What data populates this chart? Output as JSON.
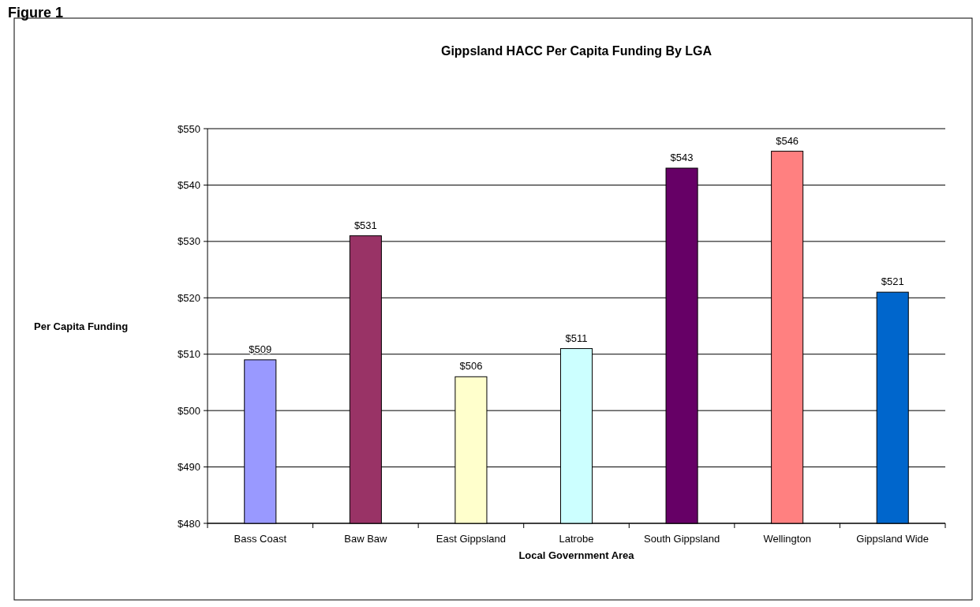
{
  "chart_data": {
    "type": "bar",
    "title": "Gippsland HACC Per Capita Funding By LGA",
    "xlabel": "Local Government Area",
    "ylabel": "Per Capita Funding",
    "annotations": [
      "Figure 1"
    ],
    "categories": [
      "Bass Coast",
      "Baw Baw",
      "East Gippsland",
      "Latrobe",
      "South Gippsland",
      "Wellington",
      "Gippsland Wide"
    ],
    "values": [
      509,
      531,
      506,
      511,
      543,
      546,
      521
    ],
    "colors": [
      "#9999ff",
      "#993366",
      "#ffffcc",
      "#ccffff",
      "#660066",
      "#ff8080",
      "#0066cc"
    ],
    "value_labels": [
      "$509",
      "$531",
      "$506",
      "$511",
      "$543",
      "$546",
      "$521"
    ],
    "ylim": [
      480,
      550
    ],
    "yticks": [
      {
        "value": 480,
        "label": "$480"
      },
      {
        "value": 490,
        "label": "$490"
      },
      {
        "value": 500,
        "label": "$500"
      },
      {
        "value": 510,
        "label": "$510"
      },
      {
        "value": 520,
        "label": "$520"
      },
      {
        "value": 530,
        "label": "$530"
      },
      {
        "value": 540,
        "label": "$540"
      },
      {
        "value": 550,
        "label": "$550"
      }
    ],
    "grid": true
  }
}
